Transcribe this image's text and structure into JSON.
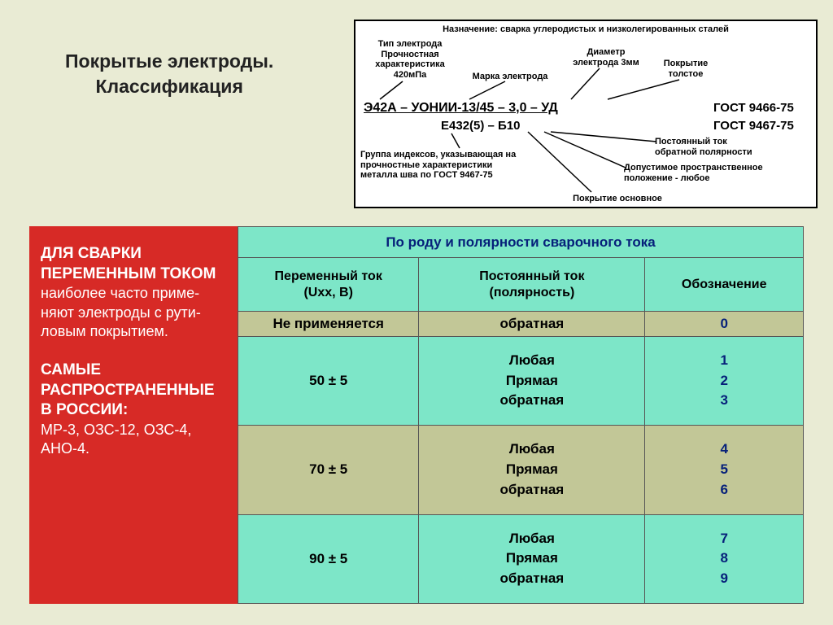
{
  "title": "Покрытые электроды.\nКлассификация",
  "diagram": {
    "top_purpose": "Назначение: сварка углеродистых и низколегированных сталей",
    "l1": "Тип электрода\nПрочностная\nхарактеристика\n420мПа",
    "l2": "Марка электрода",
    "l3": "Диаметр\nэлектрода 3мм",
    "l4": "Покрытие\nтолстое",
    "main_code": "Э42А – УОНИИ-13/45 – 3,0 – УД",
    "sub_code": "Е432(5) – Б10",
    "gost1": "ГОСТ 9466-75",
    "gost2": "ГОСТ 9467-75",
    "b1": "Группа индексов, указывающая на\nпрочностные характеристики\nметалла шва по ГОСТ 9467-75",
    "b2": "Постоянный ток\nобратной полярности",
    "b3": "Допустимое пространственное\nположение - любое",
    "b4": "Покрытие основное"
  },
  "red": {
    "cap1": "ДЛЯ СВАРКИ ПЕРЕМЕННЫМ ТОКОМ",
    "p1": "наиболее часто приме-няют электроды с рути-ловым покрытием.",
    "cap2": "САМЫЕ РАСПРОСТРАНЕННЫЕ В РОССИИ:",
    "p2": "МР-3, ОЗС-12, ОЗС-4, АНО-4."
  },
  "table": {
    "header_top": "По роду и полярности сварочного тока",
    "col1_h1": "Переменный ток",
    "col1_h2": "(Uxx, В)",
    "col2_h1": "Постоянный ток",
    "col2_h2": "(полярность)",
    "col3_h": "Обозначение",
    "rows": [
      {
        "c1": "Не применяется",
        "c2": "обратная",
        "c3": "0"
      },
      {
        "c1": "50 ± 5",
        "c2": "Любая\nПрямая\nобратная",
        "c3": "1\n2\n3"
      },
      {
        "c1": "70 ± 5",
        "c2": "Любая\nПрямая\nобратная",
        "c3": "4\n5\n6"
      },
      {
        "c1": "90 ± 5",
        "c2": "Любая\nПрямая\nобратная",
        "c3": "7\n8\n9"
      }
    ],
    "colors": {
      "header_bg": "#7de6c8",
      "row_a": "#c2c797",
      "row_b": "#7de6c8",
      "border": "#555",
      "blue_text": "#06207a"
    }
  }
}
